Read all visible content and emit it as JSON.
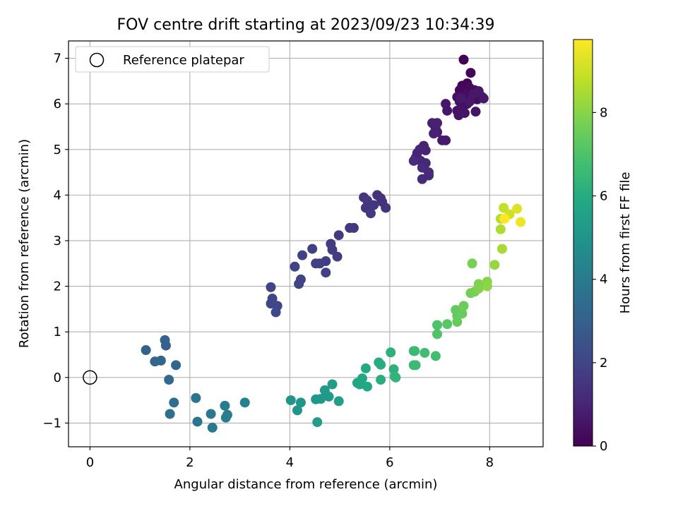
{
  "chart_data": {
    "type": "scatter",
    "title": "FOV centre drift starting at 2023/09/23 10:34:39",
    "xlabel": "Angular distance from reference (arcmin)",
    "ylabel": "Rotation from reference (arcmin)",
    "xlim": [
      -0.43,
      9.07
    ],
    "ylim": [
      -1.52,
      7.38
    ],
    "xticks": [
      0,
      2,
      4,
      6,
      8
    ],
    "yticks": [
      -1,
      0,
      1,
      2,
      3,
      4,
      5,
      6,
      7
    ],
    "grid": true,
    "legend": {
      "position": "top-left",
      "entries": [
        "Reference platepar"
      ]
    },
    "reference_point": {
      "x": 0,
      "y": 0
    },
    "colormap": "viridis",
    "colorbar": {
      "label": "Hours from first FF file",
      "range": [
        0,
        9.75
      ],
      "ticks": [
        0,
        2,
        4,
        6,
        8
      ]
    },
    "series": [
      {
        "points": [
          {
            "x": 7.48,
            "y": 6.97,
            "h": 0.0
          },
          {
            "x": 7.62,
            "y": 6.68,
            "h": 0.08
          },
          {
            "x": 7.55,
            "y": 6.45,
            "h": 0.12
          },
          {
            "x": 7.45,
            "y": 6.4,
            "h": 0.15
          },
          {
            "x": 7.4,
            "y": 6.3,
            "h": 0.2
          },
          {
            "x": 7.6,
            "y": 6.35,
            "h": 0.22
          },
          {
            "x": 7.7,
            "y": 6.3,
            "h": 0.25
          },
          {
            "x": 7.8,
            "y": 6.2,
            "h": 0.28
          },
          {
            "x": 7.85,
            "y": 6.15,
            "h": 0.3
          },
          {
            "x": 7.75,
            "y": 6.1,
            "h": 0.33
          },
          {
            "x": 7.5,
            "y": 6.2,
            "h": 0.35
          },
          {
            "x": 7.35,
            "y": 6.15,
            "h": 0.38
          },
          {
            "x": 7.4,
            "y": 6.05,
            "h": 0.4
          },
          {
            "x": 7.55,
            "y": 6.0,
            "h": 0.43
          },
          {
            "x": 7.45,
            "y": 5.95,
            "h": 0.45
          },
          {
            "x": 7.35,
            "y": 5.85,
            "h": 0.48
          },
          {
            "x": 7.38,
            "y": 5.75,
            "h": 0.5
          },
          {
            "x": 7.5,
            "y": 5.8,
            "h": 0.52
          },
          {
            "x": 7.72,
            "y": 5.83,
            "h": 0.55
          },
          {
            "x": 7.12,
            "y": 6.0,
            "h": 0.58
          },
          {
            "x": 7.15,
            "y": 5.85,
            "h": 0.6
          },
          {
            "x": 7.6,
            "y": 6.05,
            "h": 0.62
          },
          {
            "x": 7.68,
            "y": 6.22,
            "h": 0.63
          },
          {
            "x": 7.78,
            "y": 6.28,
            "h": 0.64
          },
          {
            "x": 7.88,
            "y": 6.12,
            "h": 0.65
          },
          {
            "x": 7.42,
            "y": 6.12,
            "h": 0.66
          },
          {
            "x": 7.05,
            "y": 5.2,
            "h": 0.7
          },
          {
            "x": 7.12,
            "y": 5.2,
            "h": 0.72
          },
          {
            "x": 6.95,
            "y": 5.38,
            "h": 0.78
          },
          {
            "x": 6.88,
            "y": 5.55,
            "h": 0.8
          },
          {
            "x": 6.92,
            "y": 5.45,
            "h": 0.83
          },
          {
            "x": 6.85,
            "y": 5.58,
            "h": 0.85
          },
          {
            "x": 6.95,
            "y": 5.58,
            "h": 0.88
          },
          {
            "x": 6.88,
            "y": 5.35,
            "h": 0.9
          },
          {
            "x": 6.68,
            "y": 5.08,
            "h": 0.95
          },
          {
            "x": 6.72,
            "y": 4.98,
            "h": 0.98
          },
          {
            "x": 6.6,
            "y": 5.0,
            "h": 1.0
          },
          {
            "x": 6.55,
            "y": 4.92,
            "h": 1.02
          },
          {
            "x": 6.52,
            "y": 4.82,
            "h": 1.05
          },
          {
            "x": 6.62,
            "y": 4.75,
            "h": 1.08
          },
          {
            "x": 6.72,
            "y": 4.7,
            "h": 1.1
          },
          {
            "x": 6.68,
            "y": 4.6,
            "h": 1.12
          },
          {
            "x": 6.78,
            "y": 4.5,
            "h": 1.15
          },
          {
            "x": 6.78,
            "y": 4.43,
            "h": 1.18
          },
          {
            "x": 6.65,
            "y": 4.35,
            "h": 1.2
          },
          {
            "x": 6.48,
            "y": 4.75,
            "h": 1.22
          },
          {
            "x": 6.65,
            "y": 4.6,
            "h": 1.24
          },
          {
            "x": 5.82,
            "y": 3.93,
            "h": 1.35
          },
          {
            "x": 5.75,
            "y": 4.0,
            "h": 1.38
          },
          {
            "x": 5.85,
            "y": 3.85,
            "h": 1.4
          },
          {
            "x": 5.92,
            "y": 3.72,
            "h": 1.43
          },
          {
            "x": 5.62,
            "y": 3.75,
            "h": 1.45
          },
          {
            "x": 5.52,
            "y": 3.72,
            "h": 1.48
          },
          {
            "x": 5.48,
            "y": 3.95,
            "h": 1.5
          },
          {
            "x": 5.55,
            "y": 3.88,
            "h": 1.52
          },
          {
            "x": 5.68,
            "y": 3.78,
            "h": 1.55
          },
          {
            "x": 5.62,
            "y": 3.6,
            "h": 1.58
          },
          {
            "x": 5.28,
            "y": 3.28,
            "h": 1.6
          },
          {
            "x": 5.2,
            "y": 3.28,
            "h": 1.62
          },
          {
            "x": 4.98,
            "y": 3.12,
            "h": 1.65
          },
          {
            "x": 4.82,
            "y": 2.93,
            "h": 1.68
          },
          {
            "x": 4.85,
            "y": 2.8,
            "h": 1.7
          },
          {
            "x": 4.95,
            "y": 2.65,
            "h": 1.72
          },
          {
            "x": 4.72,
            "y": 2.55,
            "h": 1.75
          },
          {
            "x": 4.6,
            "y": 2.5,
            "h": 1.78
          },
          {
            "x": 4.52,
            "y": 2.5,
            "h": 1.8
          },
          {
            "x": 4.45,
            "y": 2.82,
            "h": 1.82
          },
          {
            "x": 4.25,
            "y": 2.68,
            "h": 1.85
          },
          {
            "x": 4.1,
            "y": 2.43,
            "h": 1.88
          },
          {
            "x": 4.72,
            "y": 2.3,
            "h": 1.9
          },
          {
            "x": 4.22,
            "y": 2.15,
            "h": 1.92
          },
          {
            "x": 4.18,
            "y": 2.05,
            "h": 1.94
          },
          {
            "x": 3.62,
            "y": 1.98,
            "h": 1.98
          },
          {
            "x": 3.65,
            "y": 1.73,
            "h": 2.0
          },
          {
            "x": 3.62,
            "y": 1.62,
            "h": 2.03
          },
          {
            "x": 3.75,
            "y": 1.57,
            "h": 2.05
          },
          {
            "x": 3.72,
            "y": 1.43,
            "h": 2.08
          },
          {
            "x": 1.5,
            "y": 0.82,
            "h": 3.0
          },
          {
            "x": 1.52,
            "y": 0.7,
            "h": 3.05
          },
          {
            "x": 1.12,
            "y": 0.6,
            "h": 3.1
          },
          {
            "x": 1.42,
            "y": 0.37,
            "h": 3.15
          },
          {
            "x": 1.3,
            "y": 0.35,
            "h": 3.2
          },
          {
            "x": 1.72,
            "y": 0.27,
            "h": 3.25
          },
          {
            "x": 1.58,
            "y": -0.05,
            "h": 3.4
          },
          {
            "x": 1.68,
            "y": -0.55,
            "h": 3.5
          },
          {
            "x": 1.6,
            "y": -0.8,
            "h": 3.55
          },
          {
            "x": 2.12,
            "y": -0.45,
            "h": 3.7
          },
          {
            "x": 2.15,
            "y": -0.97,
            "h": 3.75
          },
          {
            "x": 2.42,
            "y": -0.8,
            "h": 3.85
          },
          {
            "x": 2.45,
            "y": -1.1,
            "h": 3.9
          },
          {
            "x": 2.7,
            "y": -0.62,
            "h": 4.0
          },
          {
            "x": 2.75,
            "y": -0.82,
            "h": 4.05
          },
          {
            "x": 2.72,
            "y": -0.88,
            "h": 4.1
          },
          {
            "x": 3.1,
            "y": -0.55,
            "h": 4.2
          },
          {
            "x": 4.02,
            "y": -0.5,
            "h": 5.0
          },
          {
            "x": 4.15,
            "y": -0.72,
            "h": 5.05
          },
          {
            "x": 4.22,
            "y": -0.55,
            "h": 5.1
          },
          {
            "x": 4.52,
            "y": -0.48,
            "h": 5.15
          },
          {
            "x": 4.62,
            "y": -0.47,
            "h": 5.2
          },
          {
            "x": 4.7,
            "y": -0.28,
            "h": 5.25
          },
          {
            "x": 4.78,
            "y": -0.42,
            "h": 5.3
          },
          {
            "x": 4.85,
            "y": -0.15,
            "h": 5.35
          },
          {
            "x": 4.55,
            "y": -0.98,
            "h": 5.4
          },
          {
            "x": 4.98,
            "y": -0.52,
            "h": 5.45
          },
          {
            "x": 5.35,
            "y": -0.12,
            "h": 5.7
          },
          {
            "x": 5.4,
            "y": -0.15,
            "h": 5.75
          },
          {
            "x": 5.45,
            "y": -0.02,
            "h": 5.8
          },
          {
            "x": 5.55,
            "y": -0.2,
            "h": 5.85
          },
          {
            "x": 5.52,
            "y": 0.2,
            "h": 5.9
          },
          {
            "x": 5.78,
            "y": 0.33,
            "h": 6.0
          },
          {
            "x": 5.82,
            "y": 0.28,
            "h": 6.05
          },
          {
            "x": 5.82,
            "y": -0.05,
            "h": 6.1
          },
          {
            "x": 6.02,
            "y": 0.55,
            "h": 6.2
          },
          {
            "x": 6.08,
            "y": 0.18,
            "h": 6.25
          },
          {
            "x": 6.1,
            "y": 0.02,
            "h": 6.3
          },
          {
            "x": 6.12,
            "y": 0.0,
            "h": 6.32
          },
          {
            "x": 6.48,
            "y": 0.58,
            "h": 6.5
          },
          {
            "x": 6.5,
            "y": 0.58,
            "h": 6.52
          },
          {
            "x": 6.48,
            "y": 0.27,
            "h": 6.55
          },
          {
            "x": 6.52,
            "y": 0.27,
            "h": 6.58
          },
          {
            "x": 6.7,
            "y": 0.54,
            "h": 6.7
          },
          {
            "x": 6.92,
            "y": 0.47,
            "h": 6.8
          },
          {
            "x": 6.95,
            "y": 1.15,
            "h": 7.0
          },
          {
            "x": 6.95,
            "y": 0.95,
            "h": 7.05
          },
          {
            "x": 7.15,
            "y": 1.17,
            "h": 7.2
          },
          {
            "x": 7.32,
            "y": 1.48,
            "h": 7.35
          },
          {
            "x": 7.35,
            "y": 1.35,
            "h": 7.4
          },
          {
            "x": 7.35,
            "y": 1.22,
            "h": 7.45
          },
          {
            "x": 7.45,
            "y": 1.4,
            "h": 7.5
          },
          {
            "x": 7.48,
            "y": 1.57,
            "h": 7.55
          },
          {
            "x": 7.62,
            "y": 1.85,
            "h": 7.65
          },
          {
            "x": 7.7,
            "y": 1.88,
            "h": 7.7
          },
          {
            "x": 7.65,
            "y": 2.5,
            "h": 7.75
          },
          {
            "x": 7.78,
            "y": 2.05,
            "h": 7.85
          },
          {
            "x": 7.78,
            "y": 1.95,
            "h": 7.9
          },
          {
            "x": 7.95,
            "y": 2.1,
            "h": 8.0
          },
          {
            "x": 7.95,
            "y": 2.0,
            "h": 8.05
          },
          {
            "x": 8.1,
            "y": 2.47,
            "h": 8.2
          },
          {
            "x": 8.25,
            "y": 2.82,
            "h": 8.45
          },
          {
            "x": 8.22,
            "y": 3.25,
            "h": 8.55
          },
          {
            "x": 8.22,
            "y": 3.48,
            "h": 8.7
          },
          {
            "x": 8.28,
            "y": 3.72,
            "h": 8.85
          },
          {
            "x": 8.4,
            "y": 3.58,
            "h": 9.05
          },
          {
            "x": 8.55,
            "y": 3.7,
            "h": 9.3
          },
          {
            "x": 8.62,
            "y": 3.41,
            "h": 9.55
          },
          {
            "x": 8.3,
            "y": 3.48,
            "h": 9.75
          }
        ]
      }
    ]
  }
}
